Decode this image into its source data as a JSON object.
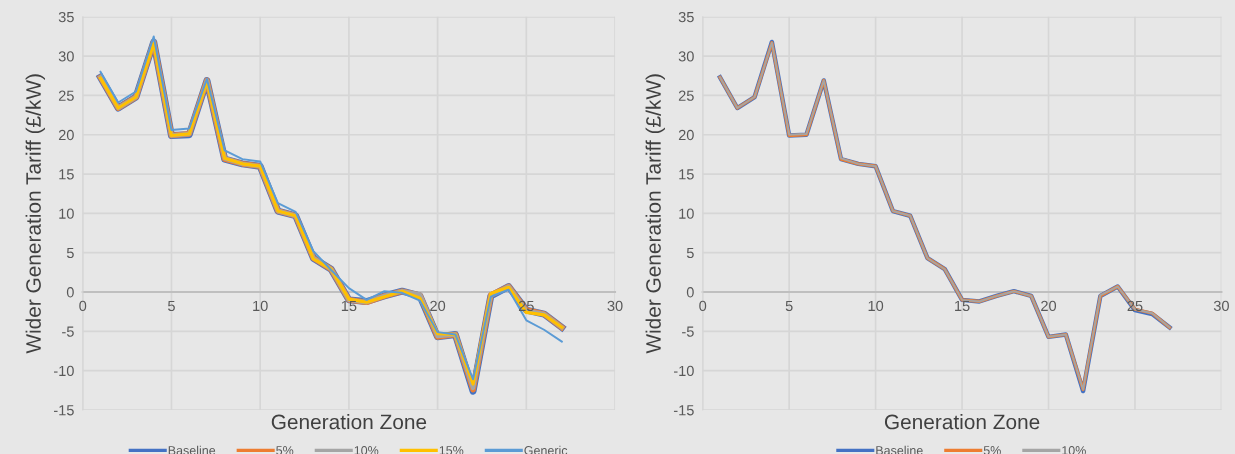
{
  "chart_data": [
    {
      "type": "line",
      "xlabel": "Generation Zone",
      "ylabel": "Wider Generation Tariff (£/kW)",
      "x": [
        1,
        2,
        3,
        4,
        5,
        6,
        7,
        8,
        9,
        10,
        11,
        12,
        13,
        14,
        15,
        16,
        17,
        18,
        19,
        20,
        21,
        22,
        23,
        24,
        25,
        26,
        27
      ],
      "xlim": [
        0,
        30
      ],
      "xticks": [
        0,
        5,
        10,
        15,
        20,
        25,
        30
      ],
      "ylim": [
        -15,
        35
      ],
      "yticks": [
        -15,
        -10,
        -5,
        0,
        5,
        10,
        15,
        20,
        25,
        30,
        35
      ],
      "grid": true,
      "legend": "bottom",
      "line_style": "solid",
      "marker": "none",
      "series": [
        {
          "name": "Baseline",
          "color": "#4472c4",
          "values": [
            27.3,
            23.4,
            24.8,
            31.8,
            19.9,
            20.0,
            26.9,
            16.9,
            16.3,
            16.0,
            10.3,
            9.7,
            4.3,
            2.9,
            -1.0,
            -1.2,
            -0.5,
            0.1,
            -0.5,
            -5.7,
            -5.4,
            -12.6,
            -0.5,
            0.7,
            -2.3,
            -2.8,
            -4.5
          ]
        },
        {
          "name": "5%",
          "color": "#ed7d31",
          "values": [
            27.3,
            23.4,
            24.8,
            31.8,
            19.9,
            20.1,
            26.9,
            16.9,
            16.3,
            16.0,
            10.3,
            9.7,
            4.3,
            2.9,
            -1.0,
            -1.3,
            -0.5,
            0.1,
            -0.4,
            -5.7,
            -5.4,
            -12.4,
            -0.4,
            0.7,
            -2.3,
            -2.8,
            -4.5
          ]
        },
        {
          "name": "10%",
          "color": "#a5a5a5",
          "values": [
            27.3,
            23.4,
            24.8,
            31.8,
            19.9,
            20.1,
            26.9,
            17.0,
            16.3,
            16.0,
            10.3,
            9.7,
            4.3,
            2.9,
            -1.0,
            -1.3,
            -0.5,
            0.1,
            -0.3,
            -5.6,
            -5.4,
            -12.2,
            -0.4,
            0.7,
            -2.4,
            -2.8,
            -4.5
          ]
        },
        {
          "name": "15%",
          "color": "#ffc000",
          "values": [
            27.2,
            23.4,
            24.8,
            31.6,
            19.9,
            20.1,
            26.8,
            17.0,
            16.3,
            16.0,
            10.3,
            9.7,
            4.2,
            2.9,
            -0.9,
            -1.3,
            -0.6,
            0.1,
            -0.8,
            -5.3,
            -5.4,
            -11.7,
            -0.2,
            0.6,
            -2.6,
            -2.9,
            -4.5
          ]
        },
        {
          "name": "Generic",
          "color": "#5b9bd5",
          "values": [
            28.0,
            24.1,
            25.5,
            32.5,
            20.6,
            20.8,
            27.1,
            18.0,
            16.9,
            16.6,
            11.3,
            10.2,
            5.2,
            2.8,
            0.5,
            -1.0,
            0.1,
            -0.1,
            -1.1,
            -5.1,
            -5.4,
            -11.1,
            -0.6,
            0.3,
            -3.6,
            -4.8,
            -6.3
          ]
        }
      ]
    },
    {
      "type": "line",
      "xlabel": "Generation Zone",
      "ylabel": "Wider Generation Tariff (£/kW)",
      "x": [
        1,
        2,
        3,
        4,
        5,
        6,
        7,
        8,
        9,
        10,
        11,
        12,
        13,
        14,
        15,
        16,
        17,
        18,
        19,
        20,
        21,
        22,
        23,
        24,
        25,
        26,
        27
      ],
      "xlim": [
        0,
        30
      ],
      "xticks": [
        0,
        5,
        10,
        15,
        20,
        25,
        30
      ],
      "ylim": [
        -15,
        35
      ],
      "yticks": [
        -15,
        -10,
        -5,
        0,
        5,
        10,
        15,
        20,
        25,
        30,
        35
      ],
      "grid": true,
      "legend": "bottom",
      "line_style": "solid",
      "marker": "none",
      "series": [
        {
          "name": "Baseline",
          "color": "#4472c4",
          "values": [
            27.3,
            23.4,
            24.8,
            31.8,
            19.9,
            20.0,
            26.9,
            16.9,
            16.3,
            16.0,
            10.3,
            9.7,
            4.3,
            2.9,
            -1.0,
            -1.2,
            -0.5,
            0.1,
            -0.5,
            -5.7,
            -5.4,
            -12.6,
            -0.5,
            0.7,
            -2.3,
            -2.8,
            -4.5
          ]
        },
        {
          "name": "5%",
          "color": "#ed7d31",
          "values": [
            27.3,
            23.4,
            24.8,
            31.7,
            19.9,
            20.0,
            26.9,
            16.9,
            16.3,
            16.0,
            10.3,
            9.7,
            4.3,
            2.9,
            -1.0,
            -1.2,
            -0.5,
            0.1,
            -0.5,
            -5.7,
            -5.4,
            -12.4,
            -0.5,
            0.7,
            -2.2,
            -2.7,
            -4.5
          ]
        },
        {
          "name": "10%",
          "color": "#a5a5a5",
          "values": [
            27.3,
            23.4,
            24.8,
            31.7,
            20.0,
            20.1,
            26.9,
            17.0,
            16.3,
            16.0,
            10.3,
            9.7,
            4.3,
            2.9,
            -1.0,
            -1.2,
            -0.5,
            0.1,
            -0.5,
            -5.7,
            -5.4,
            -12.4,
            -0.4,
            0.7,
            -2.2,
            -2.7,
            -4.5
          ]
        }
      ]
    }
  ]
}
